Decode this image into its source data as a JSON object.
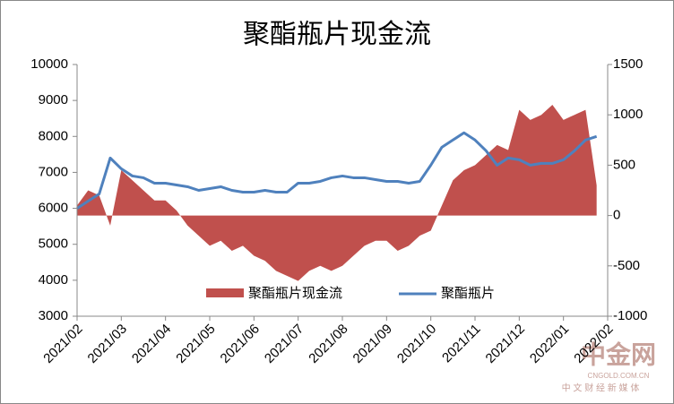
{
  "chart_data": {
    "type": "area_line",
    "title": "聚酯瓶片现金流",
    "x_labels": [
      "2021/02",
      "2021/03",
      "2021/04",
      "2021/05",
      "2021/06",
      "2021/07",
      "2021/08",
      "2021/09",
      "2021/10",
      "2021/11",
      "2021/12",
      "2022/01",
      "2022/02"
    ],
    "series": [
      {
        "name": "聚酯瓶片现金流",
        "color": "#c0504d",
        "axis": "y2",
        "kind": "area",
        "values": [
          100,
          250,
          200,
          -100,
          450,
          350,
          250,
          150,
          150,
          50,
          -100,
          -200,
          -300,
          -250,
          -350,
          -300,
          -400,
          -450,
          -550,
          -600,
          -650,
          -550,
          -500,
          -550,
          -500,
          -400,
          -300,
          -250,
          -250,
          -350,
          -300,
          -200,
          -150,
          100,
          350,
          450,
          500,
          600,
          700,
          650,
          1050,
          950,
          1000,
          1100,
          950,
          1000,
          1050,
          300
        ]
      },
      {
        "name": "聚酯瓶片",
        "color": "#4f81bd",
        "axis": "y",
        "kind": "line",
        "values": [
          6000,
          6200,
          6400,
          7400,
          7100,
          6900,
          6850,
          6700,
          6700,
          6650,
          6600,
          6500,
          6550,
          6600,
          6500,
          6450,
          6450,
          6500,
          6450,
          6450,
          6700,
          6700,
          6750,
          6850,
          6900,
          6850,
          6850,
          6800,
          6750,
          6750,
          6700,
          6750,
          7200,
          7700,
          7900,
          8100,
          7900,
          7600,
          7200,
          7400,
          7350,
          7200,
          7250,
          7250,
          7350,
          7600,
          7900,
          8000
        ]
      }
    ],
    "ylim": [
      3000,
      10000
    ],
    "yticks": [
      3000,
      4000,
      5000,
      6000,
      7000,
      8000,
      9000,
      10000
    ],
    "y2lim": [
      -1000,
      1500
    ],
    "y2ticks": [
      -1000,
      -500,
      0,
      500,
      1000,
      1500
    ],
    "watermark": {
      "brand": "中金网",
      "site": "CNGOLD.COM.CN",
      "slogan": "中 文 财 经 新 媒 体"
    }
  }
}
